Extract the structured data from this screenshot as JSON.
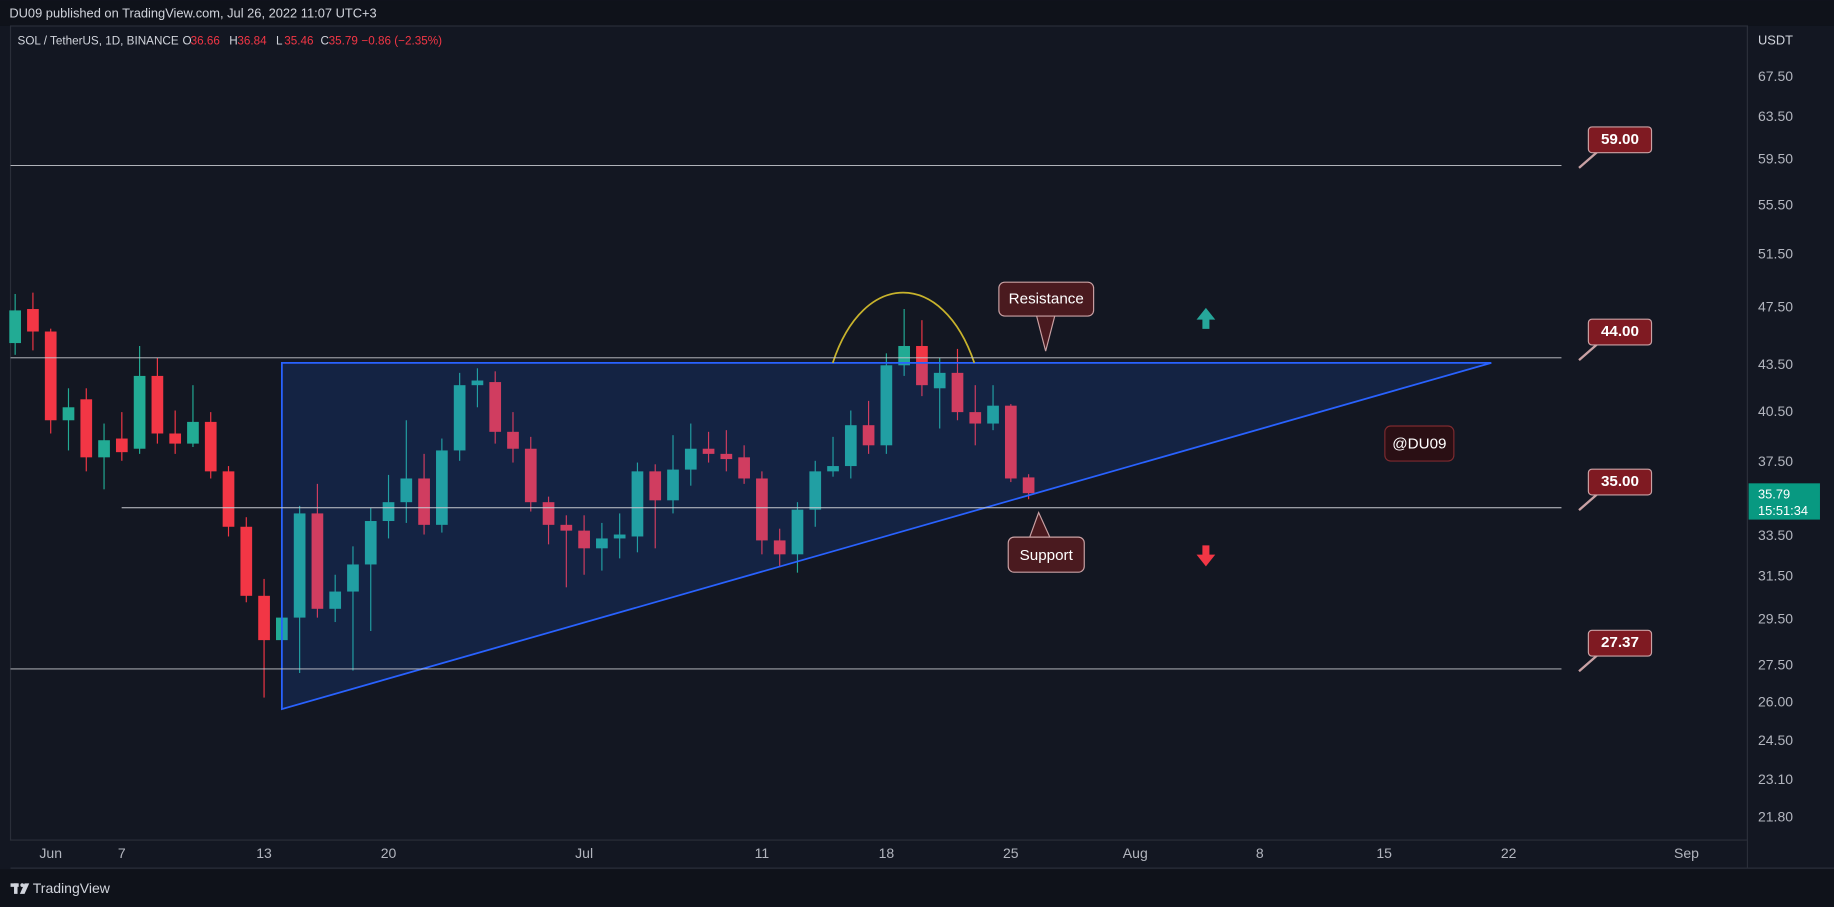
{
  "header": {
    "publisher_line": "DU09 published on TradingView.com, Jul 26, 2022 11:07 UTC+3"
  },
  "chart_data": {
    "type": "candlestick",
    "title": "SOL / TetherUS, 1D, BINANCE",
    "ohlc_prefixes": [
      "O",
      "H",
      "L",
      "C"
    ],
    "change": "−0.86 (−2.35%)",
    "y_axis_label": "USDT",
    "countdown": "15:51:34",
    "log_scale": true,
    "up_color": "#22ab94",
    "down_color": "#f23645",
    "open": [
      45.0,
      47.4,
      45.8,
      40.0,
      41.3,
      37.8,
      38.9,
      38.3,
      42.8,
      39.2,
      38.6,
      39.9,
      37.0,
      34.0,
      30.6,
      28.6,
      29.6,
      34.7,
      30.0,
      30.8,
      32.1,
      34.3,
      35.3,
      36.6,
      34.1,
      38.2,
      42.2,
      42.4,
      39.3,
      38.3,
      35.3,
      34.1,
      33.8,
      32.9,
      33.4,
      33.5,
      37.0,
      35.4,
      37.1,
      38.3,
      38.0,
      37.8,
      36.6,
      33.3,
      32.6,
      34.9,
      37.0,
      37.3,
      39.7,
      38.5,
      43.5,
      44.8,
      42.0,
      43.0,
      40.5,
      39.8,
      40.9,
      36.66
    ],
    "high": [
      48.5,
      48.6,
      46.0,
      42.0,
      42.0,
      39.8,
      40.5,
      44.8,
      44.0,
      40.6,
      42.2,
      40.5,
      37.3,
      34.5,
      31.4,
      31.2,
      35.1,
      36.3,
      31.6,
      33.0,
      35.0,
      36.8,
      40.0,
      38.0,
      38.9,
      43.0,
      43.3,
      43.1,
      40.5,
      39.0,
      35.6,
      34.6,
      34.6,
      34.2,
      34.7,
      37.5,
      37.4,
      39.1,
      39.8,
      39.3,
      39.4,
      38.5,
      37.0,
      33.9,
      35.3,
      37.6,
      39.0,
      40.6,
      41.2,
      44.3,
      47.4,
      46.6,
      44.0,
      44.6,
      42.2,
      42.2,
      41.0,
      36.84
    ],
    "low": [
      44.2,
      44.5,
      39.2,
      38.2,
      37.0,
      36.0,
      37.6,
      38.0,
      38.6,
      38.0,
      38.4,
      36.6,
      33.5,
      30.3,
      26.2,
      27.0,
      27.2,
      29.6,
      29.4,
      27.3,
      29.0,
      33.4,
      34.2,
      33.6,
      33.7,
      37.6,
      40.8,
      38.6,
      37.5,
      34.8,
      33.1,
      31.0,
      31.6,
      31.8,
      32.4,
      32.7,
      32.9,
      34.7,
      36.2,
      37.5,
      37.0,
      36.3,
      32.6,
      32.0,
      31.7,
      34.0,
      36.7,
      36.6,
      38.0,
      38.0,
      42.8,
      41.5,
      39.5,
      40.0,
      38.5,
      39.4,
      36.4,
      35.46
    ],
    "close": [
      47.3,
      45.8,
      40.0,
      40.8,
      37.8,
      38.8,
      38.1,
      42.8,
      39.2,
      38.6,
      39.9,
      37.0,
      34.0,
      30.6,
      28.6,
      29.6,
      34.7,
      30.0,
      30.8,
      32.1,
      34.3,
      35.3,
      36.6,
      34.1,
      38.2,
      42.2,
      42.5,
      39.3,
      38.3,
      35.3,
      34.1,
      33.8,
      32.9,
      33.4,
      33.6,
      37.0,
      35.4,
      37.1,
      38.3,
      38.0,
      37.7,
      36.6,
      33.3,
      32.6,
      34.9,
      37.0,
      37.3,
      39.7,
      38.5,
      43.5,
      44.8,
      42.2,
      43.0,
      40.5,
      39.8,
      40.9,
      36.6,
      35.79
    ],
    "xlim": [
      -0.26,
      97.43
    ],
    "xticks": [
      {
        "value": 2,
        "label": "Jun"
      },
      {
        "value": 6,
        "label": "7"
      },
      {
        "value": 14,
        "label": "13"
      },
      {
        "value": 21,
        "label": "20"
      },
      {
        "value": 32,
        "label": "Jul"
      },
      {
        "value": 42,
        "label": "11"
      },
      {
        "value": 49,
        "label": "18"
      },
      {
        "value": 56,
        "label": "25"
      },
      {
        "value": 63,
        "label": "Aug"
      },
      {
        "value": 70,
        "label": "8"
      },
      {
        "value": 77,
        "label": "15"
      },
      {
        "value": 84,
        "label": "22"
      },
      {
        "value": 94,
        "label": "Sep"
      }
    ],
    "ylim": [
      21.08,
      73.0
    ],
    "yticks": [
      {
        "value": 67.5,
        "label": "67.50"
      },
      {
        "value": 63.5,
        "label": "63.50"
      },
      {
        "value": 59.5,
        "label": "59.50"
      },
      {
        "value": 55.5,
        "label": "55.50"
      },
      {
        "value": 51.5,
        "label": "51.50"
      },
      {
        "value": 47.5,
        "label": "47.50"
      },
      {
        "value": 43.5,
        "label": "43.50"
      },
      {
        "value": 40.5,
        "label": "40.50"
      },
      {
        "value": 37.5,
        "label": "37.50"
      },
      {
        "value": 33.5,
        "label": "33.50"
      },
      {
        "value": 31.5,
        "label": "31.50"
      },
      {
        "value": 29.5,
        "label": "29.50"
      },
      {
        "value": 27.5,
        "label": "27.50"
      },
      {
        "value": 26,
        "label": "26.00"
      },
      {
        "value": 24.5,
        "label": "24.50"
      },
      {
        "value": 23.1,
        "label": "23.10"
      },
      {
        "value": 21.8,
        "label": "21.80"
      }
    ],
    "levels": [
      {
        "value": 59,
        "label": "59.00"
      },
      {
        "value": 44,
        "label": "44.00"
      },
      {
        "value": 35,
        "label": "35.00"
      },
      {
        "value": 27.37,
        "label": "27.37"
      }
    ],
    "annotations": {
      "resistance": "Resistance",
      "support": "Support",
      "watermark": "@DU09"
    }
  },
  "footer": {
    "brand": "TradingView"
  }
}
